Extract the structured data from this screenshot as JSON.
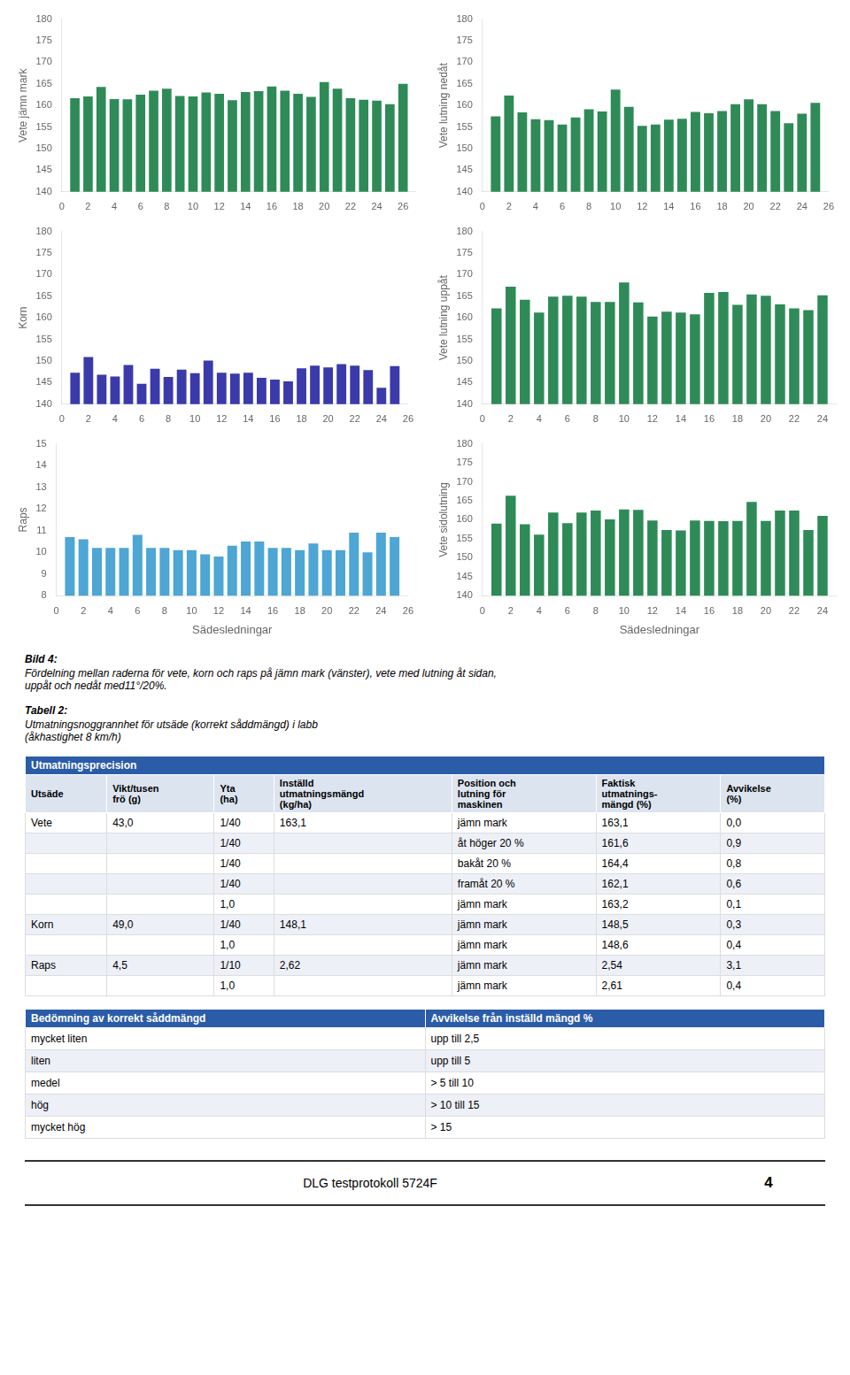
{
  "chart_data": [
    {
      "type": "bar",
      "ylabel": "Vete jämn mark",
      "color": "#2e8b57",
      "grid": false,
      "x": [
        1,
        2,
        3,
        4,
        5,
        6,
        7,
        8,
        9,
        10,
        11,
        12,
        13,
        14,
        15,
        16,
        17,
        18,
        19,
        20,
        21,
        22,
        23,
        24,
        25,
        26
      ],
      "values": [
        161.7,
        162.1,
        164.3,
        161.5,
        161.4,
        162.5,
        163.4,
        163.9,
        162.2,
        162.1,
        163.0,
        162.7,
        161.2,
        163.1,
        163.3,
        164.4,
        163.4,
        162.7,
        162.0,
        165.4,
        163.9,
        161.7,
        161.3,
        161.1,
        160.3,
        165.0
      ],
      "xlim": [
        0,
        27
      ],
      "xticks": [
        0,
        2,
        4,
        6,
        8,
        10,
        12,
        14,
        16,
        18,
        20,
        22,
        24,
        26
      ],
      "ylim": [
        140,
        180
      ],
      "yticks": [
        140,
        145,
        150,
        155,
        160,
        165,
        170,
        175,
        180
      ]
    },
    {
      "type": "bar",
      "ylabel": "Vete lutning nedåt",
      "color": "#2e8b57",
      "grid": false,
      "x": [
        1,
        2,
        3,
        4,
        5,
        6,
        7,
        8,
        9,
        10,
        11,
        12,
        13,
        14,
        15,
        16,
        17,
        18,
        19,
        20,
        21,
        22,
        23,
        24,
        25
      ],
      "values": [
        157.5,
        162.3,
        158.4,
        156.8,
        156.6,
        155.6,
        157.2,
        159.1,
        158.6,
        163.7,
        159.7,
        155.3,
        155.6,
        156.7,
        156.9,
        158.5,
        158.2,
        158.7,
        160.3,
        161.4,
        160.3,
        158.7,
        155.9,
        158.1,
        160.6
      ],
      "xlim": [
        0,
        26
      ],
      "xticks": [
        0,
        2,
        4,
        6,
        8,
        10,
        12,
        14,
        16,
        18,
        20,
        22,
        24,
        26
      ],
      "ylim": [
        140,
        180
      ],
      "yticks": [
        140,
        145,
        150,
        155,
        160,
        165,
        170,
        175,
        180
      ]
    },
    {
      "type": "bar",
      "ylabel": "Korn",
      "color": "#3a3aaa",
      "grid": false,
      "x": [
        1,
        2,
        3,
        4,
        5,
        6,
        7,
        8,
        9,
        10,
        11,
        12,
        13,
        14,
        15,
        16,
        17,
        18,
        19,
        20,
        21,
        22,
        23,
        24,
        25
      ],
      "values": [
        147.3,
        150.9,
        146.8,
        146.4,
        149.1,
        144.7,
        148.2,
        146.3,
        148.0,
        147.2,
        150.1,
        147.3,
        147.1,
        147.3,
        146.1,
        145.7,
        145.3,
        148.3,
        148.9,
        148.5,
        149.3,
        148.9,
        147.9,
        143.8,
        148.8
      ],
      "xlim": [
        0,
        26
      ],
      "xticks": [
        0,
        2,
        4,
        6,
        8,
        10,
        12,
        14,
        16,
        18,
        20,
        22,
        24,
        26
      ],
      "ylim": [
        140,
        180
      ],
      "yticks": [
        140,
        145,
        150,
        155,
        160,
        165,
        170,
        175,
        180
      ]
    },
    {
      "type": "bar",
      "ylabel": "Vete lutning uppåt",
      "color": "#2e8b57",
      "grid": false,
      "x": [
        1,
        2,
        3,
        4,
        5,
        6,
        7,
        8,
        9,
        10,
        11,
        12,
        13,
        14,
        15,
        16,
        17,
        18,
        19,
        20,
        21,
        22,
        23,
        24
      ],
      "values": [
        162.2,
        167.2,
        164.2,
        161.2,
        164.9,
        165.1,
        164.9,
        163.7,
        163.7,
        168.2,
        163.6,
        160.3,
        161.4,
        161.2,
        160.8,
        165.8,
        166.0,
        163.0,
        165.4,
        165.1,
        163.1,
        162.2,
        161.8,
        165.2
      ],
      "xlim": [
        0,
        25
      ],
      "xticks": [
        0,
        2,
        4,
        6,
        8,
        10,
        12,
        14,
        16,
        18,
        20,
        22,
        24
      ],
      "ylim": [
        140,
        180
      ],
      "yticks": [
        140,
        145,
        150,
        155,
        160,
        165,
        170,
        175,
        180
      ]
    },
    {
      "type": "bar",
      "ylabel": "Raps",
      "xlabel": "Sädesledningar",
      "color": "#4da6d4",
      "grid": false,
      "x": [
        1,
        2,
        3,
        4,
        5,
        6,
        7,
        8,
        9,
        10,
        11,
        12,
        13,
        14,
        15,
        16,
        17,
        18,
        19,
        20,
        21,
        22,
        23,
        24,
        25
      ],
      "values": [
        10.7,
        10.6,
        10.2,
        10.2,
        10.2,
        10.8,
        10.2,
        10.2,
        10.1,
        10.1,
        9.9,
        9.8,
        10.3,
        10.5,
        10.5,
        10.2,
        10.2,
        10.1,
        10.4,
        10.1,
        10.1,
        10.9,
        10.0,
        10.9,
        10.7
      ],
      "xlim": [
        0,
        26
      ],
      "xticks": [
        0,
        2,
        4,
        6,
        8,
        10,
        12,
        14,
        16,
        18,
        20,
        22,
        24,
        26
      ],
      "ylim": [
        8,
        15
      ],
      "yticks": [
        8,
        9,
        10,
        11,
        12,
        13,
        14,
        15
      ]
    },
    {
      "type": "bar",
      "ylabel": "Vete sidolutning",
      "xlabel": "Sädesledningar",
      "color": "#2e8b57",
      "grid": false,
      "x": [
        1,
        2,
        3,
        4,
        5,
        6,
        7,
        8,
        9,
        10,
        11,
        12,
        13,
        14,
        15,
        16,
        17,
        18,
        19,
        20,
        21,
        22,
        23,
        24
      ],
      "values": [
        159.0,
        166.3,
        158.8,
        156.1,
        161.9,
        159.1,
        161.9,
        162.4,
        160.1,
        162.7,
        162.6,
        159.8,
        157.3,
        157.2,
        159.8,
        159.7,
        159.6,
        159.7,
        164.7,
        159.7,
        162.4,
        162.4,
        157.3,
        161.0
      ],
      "xlim": [
        0,
        25
      ],
      "xticks": [
        0,
        2,
        4,
        6,
        8,
        10,
        12,
        14,
        16,
        18,
        20,
        22,
        24
      ],
      "ylim": [
        140,
        180
      ],
      "yticks": [
        140,
        145,
        150,
        155,
        160,
        165,
        170,
        175,
        180
      ]
    }
  ],
  "caption": [
    "Bild 4:",
    "Fördelning mellan raderna för vete, korn och raps på jämn mark (vänster), vete med lutning åt sidan,\nuppåt och nedåt med11°/20%."
  ],
  "table_title": [
    "Tabell 2:",
    "Utmatningsnoggrannhet för utsäde (korrekt såddmängd) i labb\n(åkhastighet 8 km/h)"
  ],
  "table": {
    "header": "Utmatningsprecision",
    "columns": [
      "Utsäde",
      "Vikt/tusen\nfrö (g)",
      "Yta\n(ha)",
      "Inställd\nutmatningsmängd\n(kg/ha)",
      "Position och\nlutning för\nmaskinen",
      "Faktisk\nutmatnings-\nmängd (%)",
      "Avvikelse\n(%)"
    ],
    "rows": [
      [
        "Vete",
        "43,0",
        "1/40",
        "163,1",
        "jämn mark",
        "163,1",
        "0,0"
      ],
      [
        "",
        "",
        "1/40",
        "",
        "åt höger 20 %",
        "161,6",
        "0,9"
      ],
      [
        "",
        "",
        "1/40",
        "",
        "bakåt 20 %",
        "164,4",
        "0,8"
      ],
      [
        "",
        "",
        "1/40",
        "",
        "framåt 20 %",
        "162,1",
        "0,6"
      ],
      [
        "",
        "",
        "1,0",
        "",
        "jämn mark",
        "163,2",
        "0,1"
      ],
      [
        "Korn",
        "49,0",
        "1/40",
        "148,1",
        "jämn mark",
        "148,5",
        "0,3"
      ],
      [
        "",
        "",
        "1,0",
        "",
        "jämn mark",
        "148,6",
        "0,4"
      ],
      [
        "Raps",
        "4,5",
        "1/10",
        "2,62",
        "jämn mark",
        "2,54",
        "3,1"
      ],
      [
        "",
        "",
        "1,0",
        "",
        "jämn mark",
        "2,61",
        "0,4"
      ]
    ]
  },
  "assessment_table": {
    "columns": [
      "Bedömning av korrekt såddmängd",
      "Avvikelse från inställd mängd %"
    ],
    "rows": [
      [
        "mycket liten",
        "upp till 2,5"
      ],
      [
        "liten",
        "upp till 5"
      ],
      [
        "medel",
        "> 5 till 10"
      ],
      [
        "hög",
        "> 10 till 15"
      ],
      [
        "mycket hög",
        "> 15"
      ]
    ]
  },
  "footer": {
    "text": "DLG testprotokoll 5724F",
    "page": "4"
  }
}
